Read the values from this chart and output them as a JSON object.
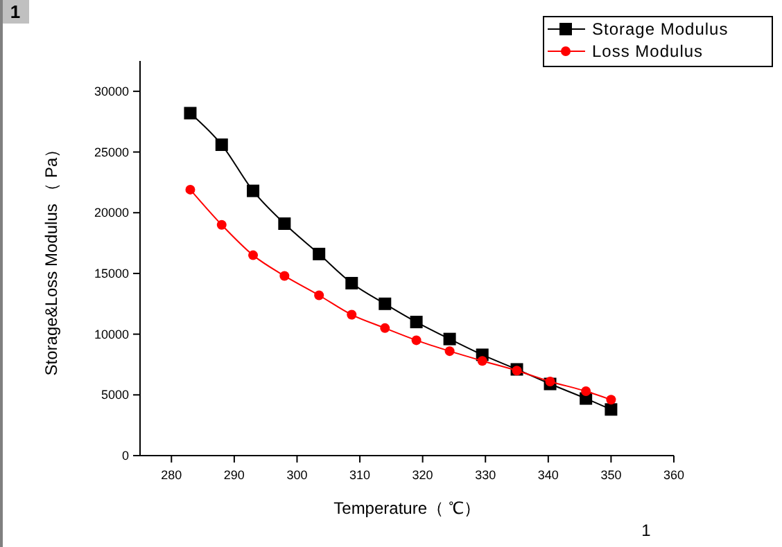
{
  "chart_data": {
    "type": "line",
    "xlabel": "Temperature（ ℃）",
    "ylabel": "Storage&Loss Modulus （ Pa）",
    "annotations": [
      "1",
      "1"
    ],
    "xlim": [
      275,
      360
    ],
    "xticks": [
      280,
      290,
      300,
      310,
      320,
      330,
      340,
      350,
      360
    ],
    "ylim": [
      0,
      32500
    ],
    "yticks": [
      0,
      5000,
      10000,
      15000,
      20000,
      25000,
      30000
    ],
    "legend": "top right",
    "grid": false,
    "series": [
      {
        "name": "Storage Modulus",
        "color": "#000000",
        "marker": "square",
        "x": [
          283,
          288,
          293,
          298,
          303.5,
          308.7,
          314,
          319,
          324.3,
          329.5,
          335,
          340.3,
          346,
          350
        ],
        "values": [
          28200,
          25600,
          21800,
          19100,
          16600,
          14200,
          12500,
          11000,
          9600,
          8300,
          7100,
          5900,
          4700,
          3800
        ]
      },
      {
        "name": "Loss Modulus",
        "color": "#ff0000",
        "marker": "circle",
        "x": [
          283,
          288,
          293,
          298,
          303.5,
          308.7,
          314,
          319,
          324.3,
          329.5,
          335,
          340.3,
          346,
          350
        ],
        "values": [
          21900,
          19000,
          16500,
          14800,
          13200,
          11600,
          10500,
          9500,
          8600,
          7800,
          7000,
          6100,
          5300,
          4600
        ]
      }
    ]
  }
}
